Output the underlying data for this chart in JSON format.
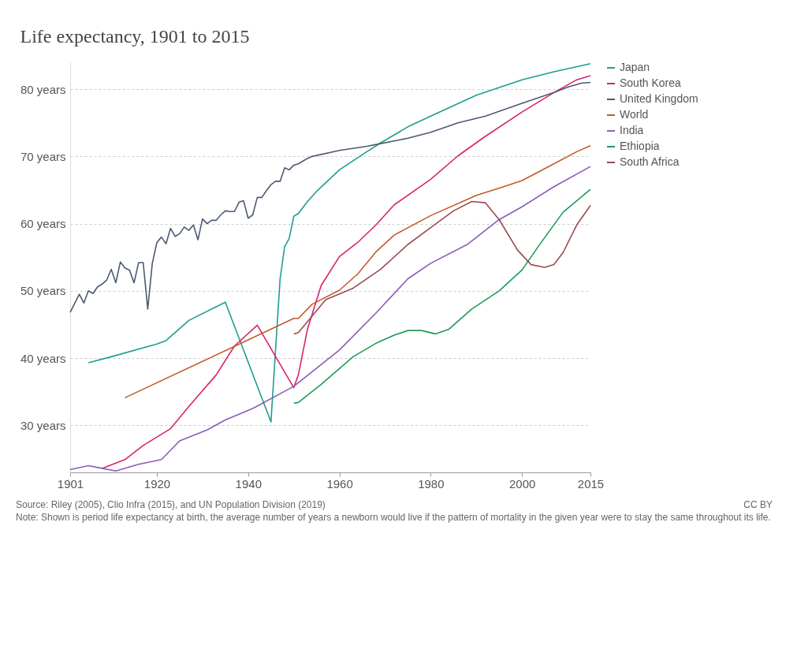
{
  "chart_data": {
    "type": "line",
    "title": "Life expectancy, 1901 to 2015",
    "annotations": [
      "Source: Riley (2005), Clio Infra (2015), and UN Population Division (2019)",
      "CC BY",
      "Note: Shown is period life expectancy at birth, the average number of years a newborn would live if the pattern of mortality in the given year were to stay the same throughout its life."
    ],
    "xlim": [
      1901,
      2015
    ],
    "xticks": [
      1901,
      1920,
      1940,
      1960,
      1980,
      2000,
      2015
    ],
    "ylim": [
      23,
      84
    ],
    "yticks": [
      {
        "value": 30,
        "label": "30 years"
      },
      {
        "value": 40,
        "label": "40 years"
      },
      {
        "value": 50,
        "label": "50 years"
      },
      {
        "value": 60,
        "label": "60 years"
      },
      {
        "value": 70,
        "label": "70 years"
      },
      {
        "value": 80,
        "label": "80 years"
      }
    ],
    "grid": "y",
    "legend": "right",
    "marker": "none",
    "line_style": "solid",
    "series": [
      {
        "name": "Japan",
        "color": "#1f9e8e",
        "x": [
          1905,
          1910,
          1920,
          1922,
          1927,
          1935,
          1945,
          1947,
          1948,
          1949,
          1950,
          1951,
          1953,
          1955,
          1960,
          1966,
          1969,
          1975,
          1980,
          1990,
          2000,
          2007,
          2015
        ],
        "values": [
          39.3,
          40.2,
          42.1,
          42.6,
          45.6,
          48.3,
          30.5,
          51.8,
          56.6,
          57.8,
          61.1,
          61.5,
          63.3,
          64.8,
          68,
          70.7,
          72,
          74.4,
          76,
          79.1,
          81.4,
          82.6,
          83.8
        ]
      },
      {
        "name": "South Korea",
        "color": "#d6246e",
        "x": [
          1908,
          1913,
          1917,
          1923,
          1927,
          1933,
          1937,
          1942,
          1950,
          1951,
          1953,
          1956,
          1960,
          1964,
          1968,
          1972,
          1980,
          1986,
          1992,
          2000,
          2007,
          2012,
          2015
        ],
        "values": [
          23.6,
          24.9,
          27,
          29.5,
          32.8,
          37.5,
          41.8,
          44.9,
          35.6,
          37.5,
          44.3,
          50.8,
          55.1,
          57.2,
          59.8,
          62.8,
          66.6,
          70.1,
          73,
          76.6,
          79.5,
          81.4,
          82
        ]
      },
      {
        "name": "United Kingdom",
        "color": "#4c5a73",
        "x": [
          1901,
          1903,
          1904,
          1905,
          1906,
          1907,
          1908,
          1909,
          1910,
          1911,
          1912,
          1913,
          1914,
          1915,
          1916,
          1917,
          1918,
          1919,
          1920,
          1921,
          1922,
          1923,
          1924,
          1925,
          1926,
          1927,
          1928,
          1929,
          1930,
          1931,
          1932,
          1933,
          1934,
          1935,
          1936,
          1937,
          1938,
          1939,
          1940,
          1941,
          1942,
          1943,
          1944,
          1945,
          1946,
          1947,
          1948,
          1949,
          1950,
          1951,
          1952,
          1953,
          1954,
          1960,
          1966,
          1969,
          1975,
          1980,
          1986,
          1992,
          2000,
          2007,
          2010,
          2013,
          2015
        ],
        "values": [
          46.8,
          49.5,
          48.2,
          50,
          49.6,
          50.6,
          51,
          51.6,
          53.2,
          51.2,
          54.3,
          53.4,
          53.1,
          51.2,
          54.2,
          54.2,
          47.3,
          54.1,
          57.2,
          58,
          57,
          59.3,
          58.1,
          58.5,
          59.5,
          59,
          59.8,
          57.6,
          60.7,
          60,
          60.5,
          60.5,
          61.3,
          61.9,
          61.8,
          61.8,
          63.2,
          63.4,
          60.8,
          61.3,
          63.9,
          63.9,
          64.9,
          65.8,
          66.3,
          66.3,
          68.3,
          68,
          68.7,
          68.9,
          69.3,
          69.7,
          70,
          70.9,
          71.5,
          71.9,
          72.7,
          73.6,
          75,
          76,
          77.9,
          79.5,
          80.3,
          80.9,
          81
        ]
      },
      {
        "name": "World",
        "color": "#c45a2a",
        "x": [
          1913,
          1950,
          1951,
          1954,
          1960,
          1964,
          1968,
          1972,
          1980,
          1990,
          1996,
          2000,
          2007,
          2012,
          2015
        ],
        "values": [
          34.1,
          45.9,
          45.9,
          48,
          50.1,
          52.5,
          55.8,
          58.3,
          61.2,
          64.2,
          65.5,
          66.4,
          68.9,
          70.7,
          71.6
        ]
      },
      {
        "name": "India",
        "color": "#8b5cb8",
        "x": [
          1901,
          1905,
          1908,
          1911,
          1916,
          1921,
          1925,
          1931,
          1935,
          1941,
          1950,
          1955,
          1960,
          1968,
          1975,
          1980,
          1988,
          1995,
          2000,
          2007,
          2015
        ],
        "values": [
          23.4,
          24,
          23.6,
          23.2,
          24.2,
          24.9,
          27.7,
          29.3,
          30.8,
          32.5,
          35.8,
          38.5,
          41.2,
          46.7,
          51.8,
          54.1,
          56.9,
          60.6,
          62.5,
          65.5,
          68.5
        ]
      },
      {
        "name": "Ethiopia",
        "color": "#1e9a5a",
        "x": [
          1950,
          1951,
          1956,
          1963,
          1968,
          1972,
          1975,
          1978,
          1981,
          1984,
          1989,
          1995,
          2000,
          2004,
          2009,
          2015
        ],
        "values": [
          33.3,
          33.4,
          36.1,
          40.2,
          42.2,
          43.4,
          44.1,
          44.1,
          43.6,
          44.3,
          47.3,
          50,
          53.1,
          57,
          61.7,
          65.1
        ]
      },
      {
        "name": "South Africa",
        "color": "#9b4a50",
        "x": [
          1950,
          1951,
          1957,
          1963,
          1969,
          1975,
          1980,
          1985,
          1989,
          1992,
          1995,
          1999,
          2002,
          2005,
          2007,
          2009,
          2012,
          2015
        ],
        "values": [
          43.6,
          43.8,
          48.7,
          50.4,
          53.2,
          56.9,
          59.4,
          61.9,
          63.3,
          63.1,
          60.6,
          56.1,
          53.9,
          53.5,
          53.9,
          55.7,
          59.8,
          62.7
        ]
      }
    ]
  }
}
